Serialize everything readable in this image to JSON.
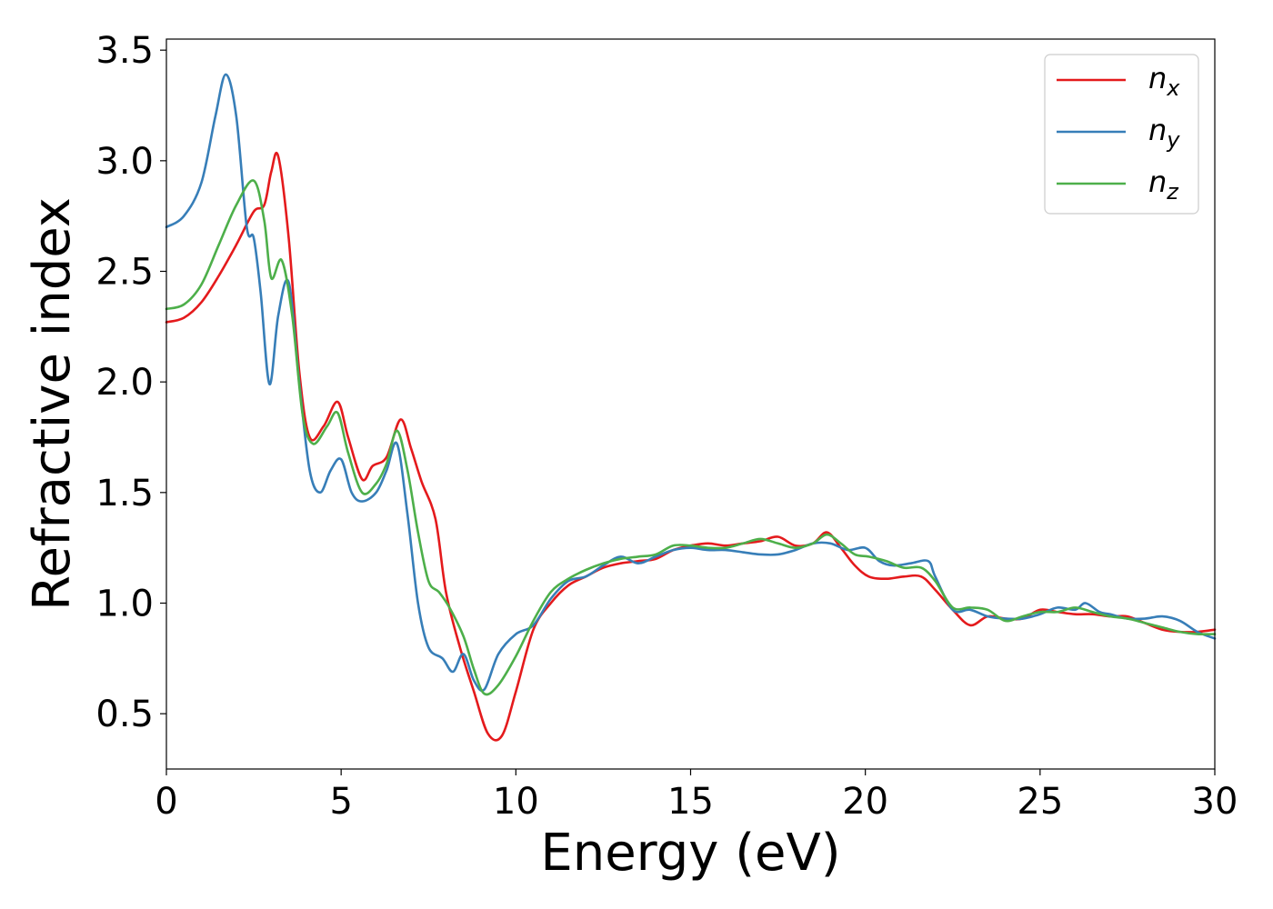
{
  "chart_data": {
    "type": "line",
    "title": "",
    "xlabel": "Energy (eV)",
    "ylabel": "Refractive index",
    "xlim": [
      0,
      30
    ],
    "ylim": [
      0.25,
      3.55
    ],
    "xticks": [
      0,
      5,
      10,
      15,
      20,
      25,
      30
    ],
    "yticks": [
      0.5,
      1.0,
      1.5,
      2.0,
      2.5,
      3.0,
      3.5
    ],
    "xtick_labels": [
      "0",
      "5",
      "10",
      "15",
      "20",
      "25",
      "30"
    ],
    "ytick_labels": [
      "0.5",
      "1.0",
      "1.5",
      "2.0",
      "2.5",
      "3.0",
      "3.5"
    ],
    "grid": false,
    "legend_position": "top-right",
    "series": [
      {
        "name": "n_x",
        "legend_main": "n",
        "legend_sub": "x",
        "color": "#e41a1c",
        "points": [
          [
            0,
            2.27
          ],
          [
            0.5,
            2.29
          ],
          [
            1,
            2.36
          ],
          [
            1.5,
            2.48
          ],
          [
            2,
            2.62
          ],
          [
            2.5,
            2.77
          ],
          [
            2.8,
            2.8
          ],
          [
            3.0,
            2.95
          ],
          [
            3.2,
            3.02
          ],
          [
            3.5,
            2.65
          ],
          [
            3.8,
            2.05
          ],
          [
            4.1,
            1.75
          ],
          [
            4.5,
            1.8
          ],
          [
            4.9,
            1.91
          ],
          [
            5.2,
            1.75
          ],
          [
            5.6,
            1.56
          ],
          [
            5.9,
            1.62
          ],
          [
            6.3,
            1.66
          ],
          [
            6.7,
            1.83
          ],
          [
            7.0,
            1.7
          ],
          [
            7.3,
            1.55
          ],
          [
            7.7,
            1.38
          ],
          [
            8.0,
            1.05
          ],
          [
            8.4,
            0.8
          ],
          [
            8.8,
            0.6
          ],
          [
            9.2,
            0.41
          ],
          [
            9.6,
            0.4
          ],
          [
            10.0,
            0.6
          ],
          [
            10.5,
            0.88
          ],
          [
            11.0,
            1.0
          ],
          [
            11.5,
            1.08
          ],
          [
            12.0,
            1.12
          ],
          [
            12.5,
            1.16
          ],
          [
            13.0,
            1.18
          ],
          [
            13.5,
            1.19
          ],
          [
            14.0,
            1.2
          ],
          [
            14.5,
            1.24
          ],
          [
            15.0,
            1.26
          ],
          [
            15.5,
            1.27
          ],
          [
            16.0,
            1.26
          ],
          [
            16.5,
            1.27
          ],
          [
            17.0,
            1.28
          ],
          [
            17.5,
            1.3
          ],
          [
            18.0,
            1.26
          ],
          [
            18.5,
            1.27
          ],
          [
            18.9,
            1.32
          ],
          [
            19.3,
            1.25
          ],
          [
            19.7,
            1.17
          ],
          [
            20.1,
            1.12
          ],
          [
            20.6,
            1.11
          ],
          [
            21.1,
            1.12
          ],
          [
            21.6,
            1.12
          ],
          [
            22.0,
            1.06
          ],
          [
            22.5,
            0.97
          ],
          [
            23.0,
            0.9
          ],
          [
            23.5,
            0.94
          ],
          [
            24.0,
            0.93
          ],
          [
            24.5,
            0.93
          ],
          [
            25.0,
            0.97
          ],
          [
            25.5,
            0.96
          ],
          [
            26.0,
            0.95
          ],
          [
            26.5,
            0.95
          ],
          [
            27.0,
            0.94
          ],
          [
            27.5,
            0.94
          ],
          [
            28.0,
            0.91
          ],
          [
            28.5,
            0.88
          ],
          [
            29.0,
            0.87
          ],
          [
            29.5,
            0.87
          ],
          [
            30.0,
            0.88
          ]
        ]
      },
      {
        "name": "n_y",
        "legend_main": "n",
        "legend_sub": "y",
        "color": "#377eb8",
        "points": [
          [
            0,
            2.7
          ],
          [
            0.5,
            2.75
          ],
          [
            1.0,
            2.9
          ],
          [
            1.4,
            3.2
          ],
          [
            1.7,
            3.39
          ],
          [
            2.0,
            3.2
          ],
          [
            2.3,
            2.7
          ],
          [
            2.5,
            2.65
          ],
          [
            2.7,
            2.4
          ],
          [
            2.95,
            1.99
          ],
          [
            3.2,
            2.3
          ],
          [
            3.5,
            2.45
          ],
          [
            3.8,
            2.0
          ],
          [
            4.1,
            1.6
          ],
          [
            4.4,
            1.5
          ],
          [
            4.7,
            1.6
          ],
          [
            5.0,
            1.65
          ],
          [
            5.3,
            1.5
          ],
          [
            5.6,
            1.46
          ],
          [
            6.0,
            1.5
          ],
          [
            6.3,
            1.6
          ],
          [
            6.6,
            1.72
          ],
          [
            6.9,
            1.4
          ],
          [
            7.2,
            1.0
          ],
          [
            7.5,
            0.8
          ],
          [
            7.9,
            0.75
          ],
          [
            8.2,
            0.69
          ],
          [
            8.5,
            0.77
          ],
          [
            8.8,
            0.65
          ],
          [
            9.1,
            0.61
          ],
          [
            9.5,
            0.77
          ],
          [
            10.0,
            0.86
          ],
          [
            10.5,
            0.9
          ],
          [
            11.0,
            1.02
          ],
          [
            11.5,
            1.1
          ],
          [
            12.0,
            1.12
          ],
          [
            12.5,
            1.17
          ],
          [
            13.0,
            1.21
          ],
          [
            13.5,
            1.18
          ],
          [
            14.0,
            1.21
          ],
          [
            14.5,
            1.24
          ],
          [
            15.0,
            1.25
          ],
          [
            15.5,
            1.24
          ],
          [
            16.0,
            1.24
          ],
          [
            16.5,
            1.23
          ],
          [
            17.0,
            1.22
          ],
          [
            17.5,
            1.22
          ],
          [
            18.0,
            1.24
          ],
          [
            18.5,
            1.27
          ],
          [
            19.0,
            1.27
          ],
          [
            19.5,
            1.24
          ],
          [
            20.0,
            1.25
          ],
          [
            20.4,
            1.19
          ],
          [
            20.8,
            1.17
          ],
          [
            21.3,
            1.18
          ],
          [
            21.8,
            1.19
          ],
          [
            22.0,
            1.12
          ],
          [
            22.5,
            0.97
          ],
          [
            23.0,
            0.97
          ],
          [
            23.5,
            0.94
          ],
          [
            24.0,
            0.93
          ],
          [
            24.5,
            0.93
          ],
          [
            25.0,
            0.95
          ],
          [
            25.5,
            0.98
          ],
          [
            26.0,
            0.97
          ],
          [
            26.3,
            1.0
          ],
          [
            26.7,
            0.96
          ],
          [
            27.0,
            0.95
          ],
          [
            27.5,
            0.93
          ],
          [
            28.0,
            0.93
          ],
          [
            28.5,
            0.94
          ],
          [
            29.0,
            0.92
          ],
          [
            29.5,
            0.87
          ],
          [
            30.0,
            0.84
          ]
        ]
      },
      {
        "name": "n_z",
        "legend_main": "n",
        "legend_sub": "z",
        "color": "#4daf4a",
        "points": [
          [
            0,
            2.33
          ],
          [
            0.5,
            2.35
          ],
          [
            1.0,
            2.44
          ],
          [
            1.5,
            2.62
          ],
          [
            2.0,
            2.8
          ],
          [
            2.5,
            2.91
          ],
          [
            2.8,
            2.73
          ],
          [
            3.0,
            2.47
          ],
          [
            3.3,
            2.55
          ],
          [
            3.6,
            2.3
          ],
          [
            3.9,
            1.85
          ],
          [
            4.2,
            1.72
          ],
          [
            4.6,
            1.8
          ],
          [
            4.9,
            1.86
          ],
          [
            5.2,
            1.68
          ],
          [
            5.6,
            1.5
          ],
          [
            6.0,
            1.54
          ],
          [
            6.3,
            1.63
          ],
          [
            6.6,
            1.78
          ],
          [
            6.9,
            1.6
          ],
          [
            7.2,
            1.32
          ],
          [
            7.5,
            1.1
          ],
          [
            7.8,
            1.05
          ],
          [
            8.1,
            0.98
          ],
          [
            8.5,
            0.85
          ],
          [
            8.8,
            0.7
          ],
          [
            9.1,
            0.59
          ],
          [
            9.5,
            0.63
          ],
          [
            10.0,
            0.76
          ],
          [
            10.5,
            0.92
          ],
          [
            11.0,
            1.05
          ],
          [
            11.5,
            1.11
          ],
          [
            12.0,
            1.15
          ],
          [
            12.5,
            1.18
          ],
          [
            13.0,
            1.2
          ],
          [
            13.5,
            1.21
          ],
          [
            14.0,
            1.22
          ],
          [
            14.5,
            1.26
          ],
          [
            15.0,
            1.26
          ],
          [
            15.5,
            1.25
          ],
          [
            16.0,
            1.25
          ],
          [
            16.5,
            1.27
          ],
          [
            17.0,
            1.29
          ],
          [
            17.5,
            1.27
          ],
          [
            18.0,
            1.25
          ],
          [
            18.5,
            1.27
          ],
          [
            18.9,
            1.31
          ],
          [
            19.3,
            1.27
          ],
          [
            19.7,
            1.22
          ],
          [
            20.1,
            1.21
          ],
          [
            20.6,
            1.19
          ],
          [
            21.1,
            1.16
          ],
          [
            21.6,
            1.16
          ],
          [
            22.0,
            1.1
          ],
          [
            22.5,
            0.98
          ],
          [
            23.0,
            0.98
          ],
          [
            23.5,
            0.97
          ],
          [
            24.0,
            0.92
          ],
          [
            24.5,
            0.94
          ],
          [
            25.0,
            0.96
          ],
          [
            25.5,
            0.96
          ],
          [
            26.0,
            0.98
          ],
          [
            26.5,
            0.96
          ],
          [
            27.0,
            0.94
          ],
          [
            27.5,
            0.93
          ],
          [
            28.0,
            0.91
          ],
          [
            28.5,
            0.89
          ],
          [
            29.0,
            0.87
          ],
          [
            29.5,
            0.86
          ],
          [
            30.0,
            0.86
          ]
        ]
      }
    ]
  }
}
